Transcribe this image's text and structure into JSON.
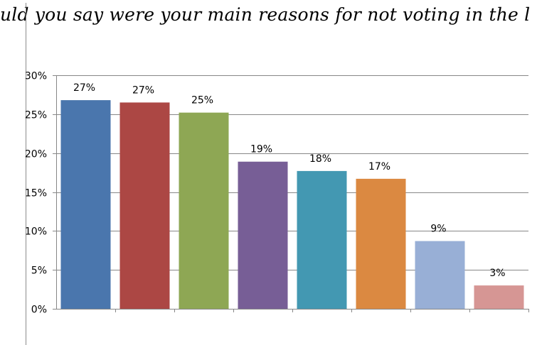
{
  "title_visible": "uld you say were your main reasons for not voting in the l",
  "chart_data": {
    "type": "bar",
    "title": "uld you say were your main reasons for not voting in the l",
    "xlabel": "",
    "ylabel": "",
    "ylim": [
      0,
      30
    ],
    "y_ticks": [
      "0%",
      "5%",
      "10%",
      "15%",
      "20%",
      "25%",
      "30%"
    ],
    "grid": true,
    "legend": "none",
    "values": [
      26.8,
      26.5,
      25.2,
      18.9,
      17.7,
      16.7,
      8.7,
      3.0
    ],
    "data_labels": [
      "27%",
      "27%",
      "25%",
      "19%",
      "18%",
      "17%",
      "9%",
      "3%"
    ],
    "colors": [
      "#4a76ad",
      "#ac4744",
      "#8ea754",
      "#775e96",
      "#4398b2",
      "#db8941",
      "#98afd6",
      "#d69694"
    ]
  }
}
